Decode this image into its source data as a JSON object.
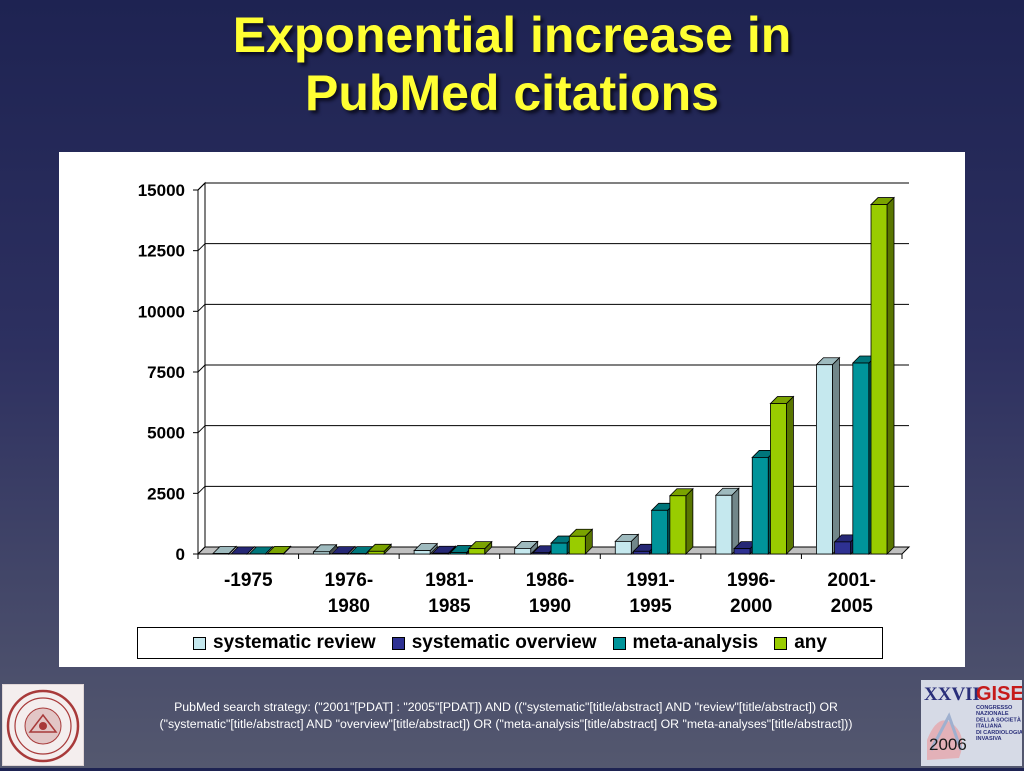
{
  "slide": {
    "title_line1": "Exponential increase in",
    "title_line2": "PubMed citations",
    "footnote_line1": "PubMed search strategy: (\"2001\"[PDAT] : \"2005\"[PDAT]) AND ((\"systematic\"[title/abstract] AND \"review\"[title/abstract]) OR",
    "footnote_line2": "(\"systematic\"[title/abstract] AND \"overview\"[title/abstract]) OR (\"meta-analysis\"[title/abstract] OR \"meta-analyses\"[title/abstract]))",
    "right_logo": {
      "numeral": "XXVII",
      "name": "GISE",
      "text_lines": [
        "CONGRESSO",
        "NAZIONALE",
        "DELLA SOCIETÀ",
        "ITALIANA",
        "DI CARDIOLOGIA",
        "INVASIVA"
      ],
      "year": "2006"
    }
  },
  "chart_data": {
    "type": "bar",
    "style": "3d-clustered",
    "categories": [
      [
        "-1975"
      ],
      [
        "1976-",
        "1980"
      ],
      [
        "1981-",
        "1985"
      ],
      [
        "1986-",
        "1990"
      ],
      [
        "1991-",
        "1995"
      ],
      [
        "1996-",
        "2000"
      ],
      [
        "2001-",
        "2005"
      ]
    ],
    "series": [
      {
        "name": "systematic review",
        "color": "#c5e8ee",
        "values": [
          20,
          90,
          140,
          230,
          520,
          2420,
          7800
        ]
      },
      {
        "name": "systematic overview",
        "color": "#2e3192",
        "values": [
          5,
          15,
          30,
          50,
          110,
          220,
          500
        ]
      },
      {
        "name": "meta-analysis",
        "color": "#00949a",
        "values": [
          5,
          15,
          60,
          450,
          1800,
          3980,
          7870
        ]
      },
      {
        "name": "any",
        "color": "#99cc00",
        "values": [
          25,
          110,
          220,
          730,
          2400,
          6200,
          14400
        ]
      }
    ],
    "ylim": [
      0,
      15000
    ],
    "yticks": [
      0,
      2500,
      5000,
      7500,
      10000,
      12500,
      15000
    ],
    "gridlines": true,
    "legend_position": "bottom"
  }
}
